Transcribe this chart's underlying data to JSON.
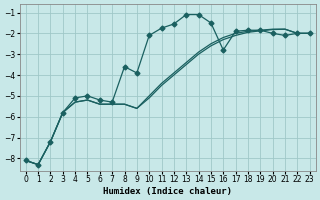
{
  "xlabel": "Humidex (Indice chaleur)",
  "bg_color": "#c8e8e8",
  "grid_color": "#a0c8c8",
  "line_color": "#1a6060",
  "xlim": [
    -0.5,
    23.5
  ],
  "ylim": [
    -8.6,
    -0.6
  ],
  "yticks": [
    -8,
    -7,
    -6,
    -5,
    -4,
    -3,
    -2,
    -1
  ],
  "xticks": [
    0,
    1,
    2,
    3,
    4,
    5,
    6,
    7,
    8,
    9,
    10,
    11,
    12,
    13,
    14,
    15,
    16,
    17,
    18,
    19,
    20,
    21,
    22,
    23
  ],
  "line1_x": [
    0,
    1,
    2,
    3,
    4,
    5,
    6,
    7,
    8,
    9,
    10,
    11,
    12,
    13,
    14,
    15,
    16,
    17,
    18,
    19,
    20,
    21,
    22,
    23
  ],
  "line1_y": [
    -8.1,
    -8.3,
    -7.2,
    -5.8,
    -5.1,
    -5.0,
    -5.2,
    -5.3,
    -3.6,
    -3.9,
    -2.1,
    -1.75,
    -1.55,
    -1.1,
    -1.1,
    -1.5,
    -2.8,
    -1.9,
    -1.85,
    -1.85,
    -2.0,
    -2.1,
    -2.0,
    -2.0
  ],
  "line2_x": [
    0,
    1,
    2,
    3,
    4,
    5,
    6,
    7,
    8,
    9,
    10,
    11,
    12,
    13,
    14,
    15,
    16,
    17,
    18,
    19,
    20,
    21,
    22,
    23
  ],
  "line2_y": [
    -8.1,
    -8.3,
    -7.2,
    -5.8,
    -5.3,
    -5.2,
    -5.4,
    -5.4,
    -5.4,
    -5.6,
    -5.0,
    -4.4,
    -3.9,
    -3.4,
    -2.9,
    -2.5,
    -2.2,
    -2.0,
    -1.9,
    -1.85,
    -1.8,
    -1.8,
    -2.0,
    -2.0
  ],
  "line3_x": [
    0,
    1,
    2,
    3,
    4,
    5,
    6,
    7,
    8,
    9,
    10,
    11,
    12,
    13,
    14,
    15,
    16,
    17,
    18,
    19,
    20,
    21,
    22,
    23
  ],
  "line3_y": [
    -8.1,
    -8.3,
    -7.2,
    -5.8,
    -5.3,
    -5.2,
    -5.4,
    -5.4,
    -5.4,
    -5.6,
    -5.1,
    -4.5,
    -4.0,
    -3.5,
    -3.0,
    -2.6,
    -2.3,
    -2.1,
    -1.95,
    -1.88,
    -1.82,
    -1.8,
    -2.0,
    -2.0
  ]
}
